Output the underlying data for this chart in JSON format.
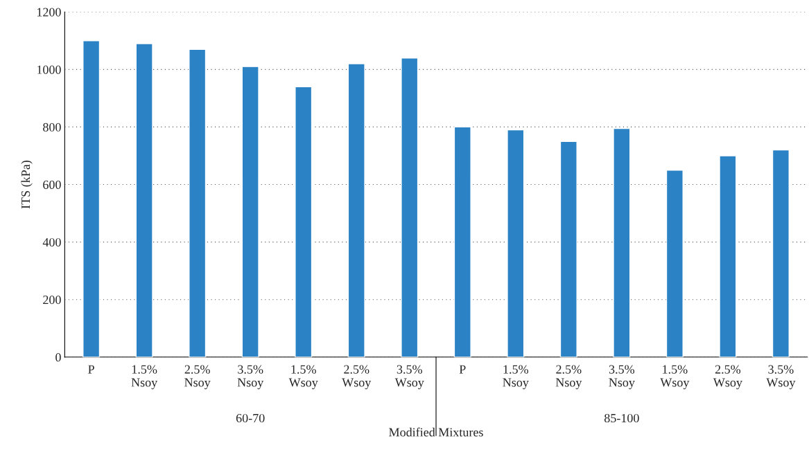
{
  "chart_data": {
    "type": "bar",
    "xlabel": "Modified Mixtures",
    "ylabel": "ITS (kPa)",
    "categories": [
      "P",
      "1.5%\nNsoy",
      "2.5%\nNsoy",
      "3.5%\nNsoy",
      "1.5%\nWsoy",
      "2.5%\nWsoy",
      "3.5%\nWsoy",
      "P",
      "1.5%\nNsoy",
      "2.5%\nNsoy",
      "3.5%\nNsoy",
      "1.5%\nWsoy",
      "2.5%\nWsoy",
      "3.5%\nWsoy"
    ],
    "values": [
      1100,
      1090,
      1070,
      1010,
      940,
      1020,
      1040,
      800,
      790,
      750,
      795,
      650,
      700,
      720
    ],
    "color": "#2b83c6",
    "ylim": [
      0,
      1200
    ],
    "yticks": [
      0,
      200,
      400,
      600,
      800,
      1000,
      1200
    ],
    "grid": "y",
    "annotations": [
      "60-70",
      "85-100"
    ]
  }
}
